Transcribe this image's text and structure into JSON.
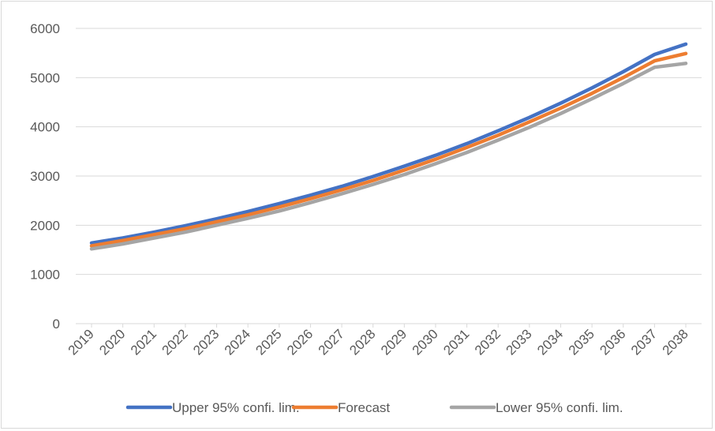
{
  "chart_data": {
    "type": "line",
    "title": "",
    "xlabel": "",
    "ylabel": "",
    "x": [
      "2019",
      "2020",
      "2021",
      "2022",
      "2023",
      "2024",
      "2025",
      "2026",
      "2027",
      "2028",
      "2029",
      "2030",
      "2031",
      "2032",
      "2033",
      "2034",
      "2035",
      "2036",
      "2037",
      "2038"
    ],
    "ylim": [
      0,
      6000
    ],
    "yticks": [
      0,
      1000,
      2000,
      3000,
      4000,
      5000,
      6000
    ],
    "grid": true,
    "legend_position": "bottom",
    "series": [
      {
        "name": "Upper 95% confi. lim.",
        "color": "#4472c4",
        "values": [
          1640,
          1740,
          1860,
          1990,
          2130,
          2280,
          2440,
          2610,
          2790,
          2990,
          3200,
          3420,
          3660,
          3920,
          4190,
          4480,
          4790,
          5120,
          5470,
          5680
        ]
      },
      {
        "name": "Forecast",
        "color": "#ed7d31",
        "values": [
          1580,
          1690,
          1810,
          1930,
          2070,
          2210,
          2370,
          2540,
          2720,
          2910,
          3120,
          3340,
          3580,
          3830,
          4100,
          4380,
          4680,
          5000,
          5340,
          5490
        ]
      },
      {
        "name": "Lower 95% confi. lim.",
        "color": "#a5a5a5",
        "values": [
          1520,
          1620,
          1740,
          1860,
          2000,
          2140,
          2290,
          2460,
          2640,
          2830,
          3030,
          3250,
          3480,
          3730,
          3990,
          4270,
          4570,
          4880,
          5210,
          5290
        ]
      }
    ]
  }
}
